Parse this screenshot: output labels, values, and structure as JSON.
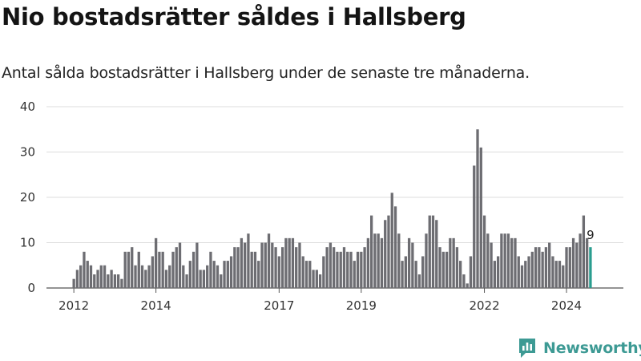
{
  "title": "Nio bostadsrätter såldes i Hallsberg",
  "subtitle": "Antal sålda bostadsrätter i Hallsberg under de senaste tre månaderna.",
  "brand": {
    "name": "Newsworthy",
    "color": "#3d9a94"
  },
  "chart_data": {
    "type": "bar",
    "title": "Nio bostadsrätter såldes i Hallsberg",
    "subtitle": "Antal sålda bostadsrätter i Hallsberg under de senaste tre månaderna.",
    "ylim": [
      0,
      40
    ],
    "yticks": [
      0,
      10,
      20,
      30,
      40
    ],
    "xticks": [
      {
        "label": "2012",
        "index": 0
      },
      {
        "label": "2014",
        "index": 24
      },
      {
        "label": "2017",
        "index": 60
      },
      {
        "label": "2019",
        "index": 84
      },
      {
        "label": "2022",
        "index": 120
      },
      {
        "label": "2024",
        "index": 144
      }
    ],
    "grid": true,
    "bar_color": "#6d6d72",
    "highlight_color": "#2a9d8f",
    "highlight_index": 151,
    "highlight_label": "9",
    "values": [
      2,
      4,
      5,
      8,
      6,
      5,
      3,
      4,
      5,
      5,
      3,
      4,
      3,
      3,
      2,
      8,
      8,
      9,
      5,
      8,
      5,
      4,
      5,
      7,
      11,
      8,
      8,
      4,
      5,
      8,
      9,
      10,
      5,
      3,
      6,
      8,
      10,
      4,
      4,
      5,
      8,
      6,
      5,
      3,
      6,
      6,
      7,
      9,
      9,
      11,
      10,
      12,
      8,
      8,
      6,
      10,
      10,
      12,
      10,
      9,
      7,
      9,
      11,
      11,
      11,
      9,
      10,
      7,
      6,
      6,
      4,
      4,
      3,
      7,
      9,
      10,
      9,
      8,
      8,
      9,
      8,
      8,
      6,
      8,
      8,
      9,
      11,
      16,
      12,
      12,
      11,
      15,
      16,
      21,
      18,
      12,
      6,
      7,
      11,
      10,
      6,
      3,
      7,
      12,
      16,
      16,
      15,
      9,
      8,
      8,
      11,
      11,
      9,
      6,
      3,
      1,
      7,
      27,
      35,
      31,
      16,
      12,
      10,
      6,
      7,
      12,
      12,
      12,
      11,
      11,
      7,
      5,
      6,
      7,
      8,
      9,
      9,
      8,
      9,
      10,
      7,
      6,
      6,
      5,
      9,
      9,
      11,
      10,
      12,
      16,
      11,
      9
    ]
  }
}
